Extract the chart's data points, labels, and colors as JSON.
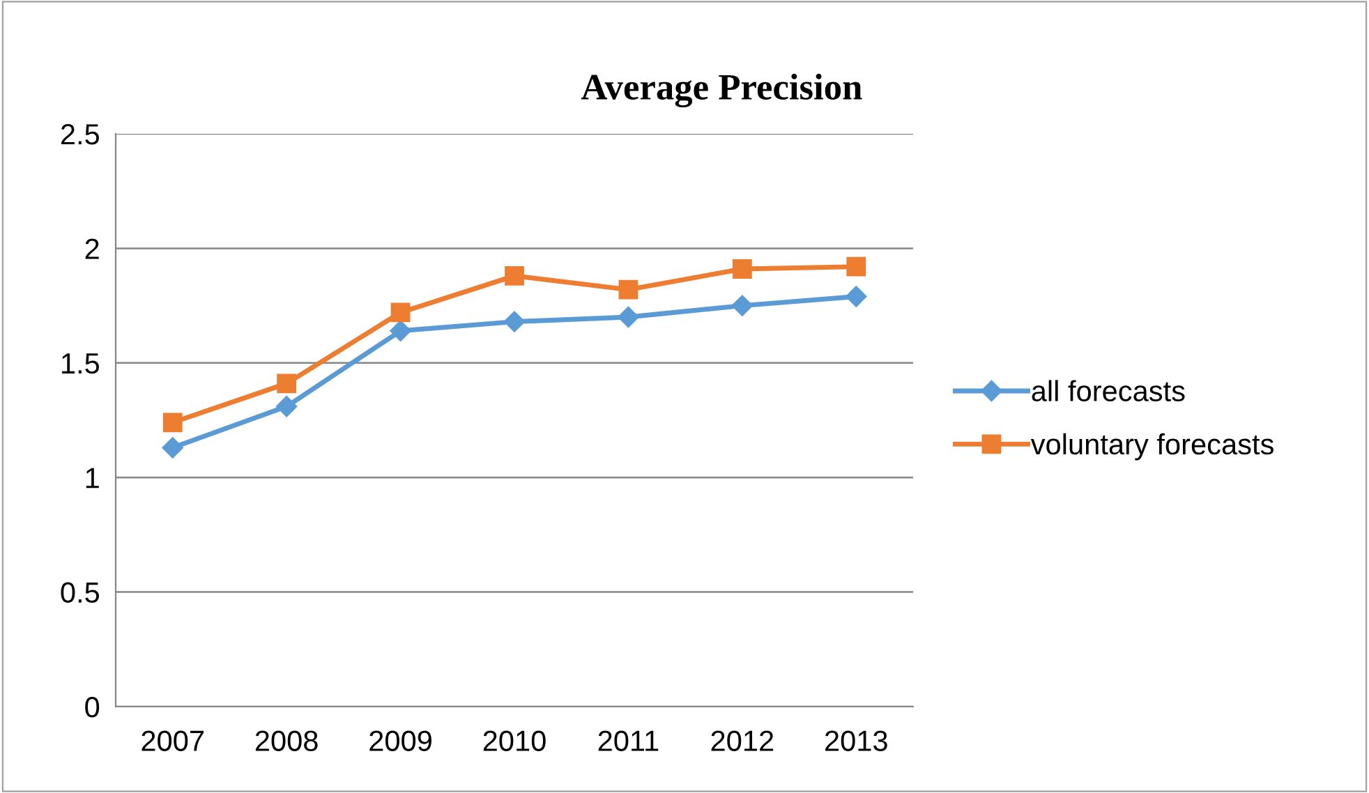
{
  "chart_data": {
    "type": "line",
    "title": "Average Precision",
    "categories": [
      "2007",
      "2008",
      "2009",
      "2010",
      "2011",
      "2012",
      "2013"
    ],
    "series": [
      {
        "name": "all forecasts",
        "color": "#5b9bd5",
        "marker": "diamond",
        "values": [
          1.13,
          1.31,
          1.64,
          1.68,
          1.7,
          1.75,
          1.79
        ]
      },
      {
        "name": "voluntary forecasts",
        "color": "#ed7d31",
        "marker": "square",
        "values": [
          1.24,
          1.41,
          1.72,
          1.88,
          1.82,
          1.91,
          1.92
        ]
      }
    ],
    "ylim": [
      0,
      2.5
    ],
    "yticks": [
      0,
      0.5,
      1,
      1.5,
      2,
      2.5
    ],
    "grid": "y",
    "legend": "right",
    "line_style": "solid"
  }
}
